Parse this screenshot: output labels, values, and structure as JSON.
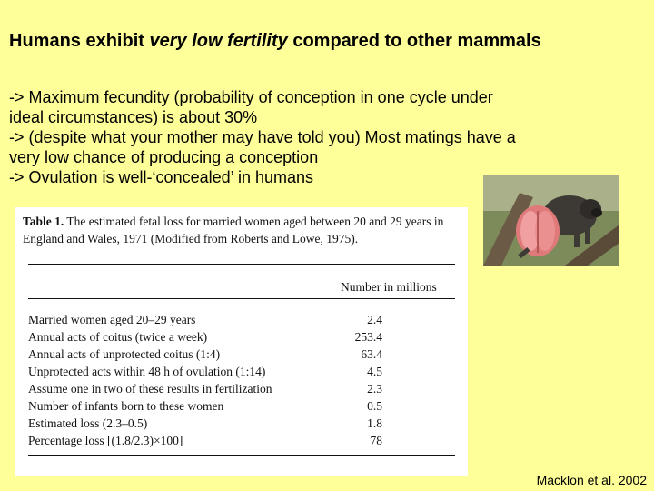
{
  "slide": {
    "title_pre": "Humans exhibit ",
    "title_em": "very low fertility",
    "title_post": " compared to other mammals",
    "bullets": [
      "-> Maximum fecundity (probability of conception in one cycle under",
      "ideal circumstances) is about 30%",
      "-> (despite what your mother may have told you) Most matings have a",
      "very low chance of producing a conception",
      "-> Ovulation is well-‘concealed’ in humans"
    ],
    "credit": "Macklon et al. 2002"
  },
  "table": {
    "caption_label": "Table 1.",
    "caption_text": " The estimated fetal loss for married women aged between 20 and 29 years in England and Wales, 1971 (Modified from Roberts and Lowe, 1975).",
    "column_header": "Number in millions",
    "rows": [
      {
        "label": "Married women aged 20–29 years",
        "value": "2.4"
      },
      {
        "label": "Annual acts of coitus (twice a week)",
        "value": "253.4"
      },
      {
        "label": "Annual acts of unprotected coitus (1:4)",
        "value": "63.4"
      },
      {
        "label": "Unprotected acts within 48 h of ovulation (1:14)",
        "value": "4.5"
      },
      {
        "label": "Assume one in two of these results in fertilization",
        "value": "2.3"
      },
      {
        "label": "Number of infants born to these women",
        "value": "0.5"
      },
      {
        "label": "Estimated loss (2.3–0.5)",
        "value": "1.8"
      },
      {
        "label": "Percentage loss [(1.8/2.3)×100]",
        "value": "78"
      }
    ]
  }
}
